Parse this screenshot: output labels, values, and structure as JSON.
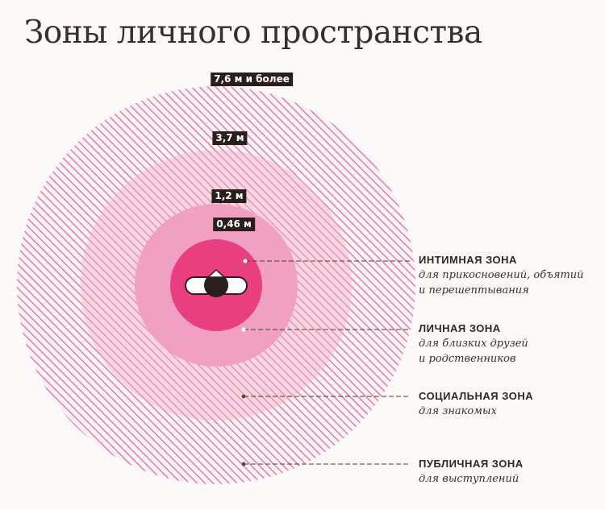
{
  "title": "Зоны личного пространства",
  "distances": {
    "public": "7,6 м и более",
    "social": "3,7 м",
    "personal": "1,2 м",
    "intimate": "0,46 м"
  },
  "zones": [
    {
      "name": "ИНТИМНАЯ ЗОНА",
      "desc1": "для прикосновений, объятий",
      "desc2": "и перешептывания"
    },
    {
      "name": "ЛИЧНАЯ ЗОНА",
      "desc1": "для близких друзей",
      "desc2": "и родственников"
    },
    {
      "name": "СОЦИАЛЬНАЯ ЗОНА",
      "desc1": "для знакомых",
      "desc2": ""
    },
    {
      "name": "ПУБЛИЧНАЯ ЗОНА",
      "desc1": "для выступлений",
      "desc2": ""
    }
  ],
  "colors": {
    "intimate": "#ea3f7f",
    "personal": "#f2a0c2",
    "hatch": "#e06a98",
    "label_bg": "#2b1f1d",
    "person": "#2b1f1d"
  },
  "icons": {
    "person": "person-top-view-icon"
  }
}
